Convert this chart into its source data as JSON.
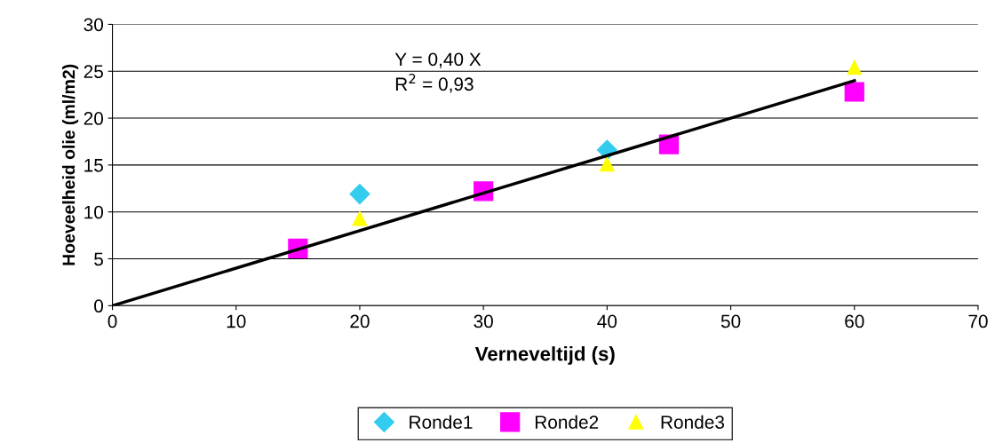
{
  "chart_data": {
    "type": "scatter",
    "xlabel": "Verneveltijd (s)",
    "ylabel": "Hoeveelheid olie (ml/m2)",
    "xlim": [
      0,
      70
    ],
    "xticks": [
      0,
      10,
      20,
      30,
      40,
      50,
      60,
      70
    ],
    "ylim": [
      0,
      30
    ],
    "yticks": [
      0,
      5,
      10,
      15,
      20,
      25,
      30
    ],
    "grid": "y",
    "legend": "bottom",
    "annotations": [
      "Y = 0,40 X",
      "R$^{2}$ = 0,93"
    ],
    "series": [
      {
        "name": "Ronde1",
        "color": "#33ccee",
        "marker": "diamond",
        "x": [
          20,
          40
        ],
        "values": [
          11.9,
          16.6
        ]
      },
      {
        "name": "Ronde2",
        "color": "#ff00ff",
        "marker": "square",
        "x": [
          15,
          30,
          45,
          60
        ],
        "values": [
          6.1,
          12.2,
          17.2,
          22.8
        ]
      },
      {
        "name": "Ronde3",
        "color": "#ffff00",
        "marker": "triangle",
        "x": [
          20,
          40,
          60
        ],
        "values": [
          9.3,
          15.1,
          25.4
        ]
      },
      {
        "type": "line",
        "color": "#000000",
        "marker": "none",
        "x": [
          0,
          60
        ],
        "values": [
          0,
          24
        ]
      }
    ]
  }
}
